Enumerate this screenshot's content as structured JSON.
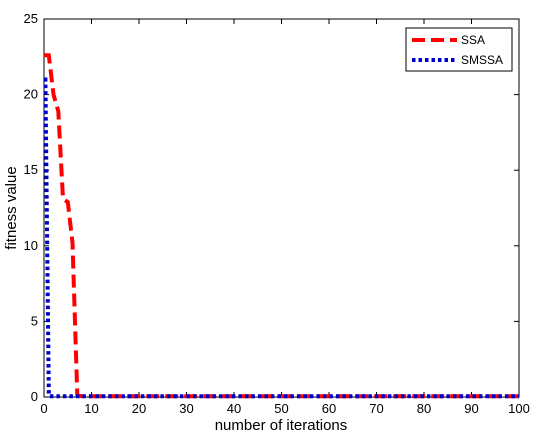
{
  "chart_data": {
    "type": "line",
    "title": "",
    "xlabel": "number of iterations",
    "ylabel": "fitness value",
    "xlim": [
      0,
      100
    ],
    "ylim": [
      0,
      25
    ],
    "grid": false,
    "legend_position": "top-right",
    "x_ticks": [
      "0",
      "10",
      "20",
      "30",
      "40",
      "50",
      "60",
      "70",
      "80",
      "90",
      "100"
    ],
    "y_ticks": [
      "0",
      "5",
      "10",
      "15",
      "20",
      "25"
    ],
    "series": [
      {
        "name": "SSA",
        "color": "#ff0000",
        "style": "dashed",
        "x": [
          0,
          1,
          2,
          3,
          4,
          5,
          6,
          7,
          8,
          100
        ],
        "y": [
          22.6,
          22.6,
          20.0,
          18.9,
          13.1,
          12.9,
          10.2,
          0.1,
          0.05,
          0.05
        ]
      },
      {
        "name": "SMSSA",
        "color": "#0000cc",
        "style": "dotted",
        "x": [
          0,
          0.3,
          1,
          1.2,
          100
        ],
        "y": [
          21.0,
          21.0,
          0.2,
          0.05,
          0.05
        ]
      }
    ]
  }
}
